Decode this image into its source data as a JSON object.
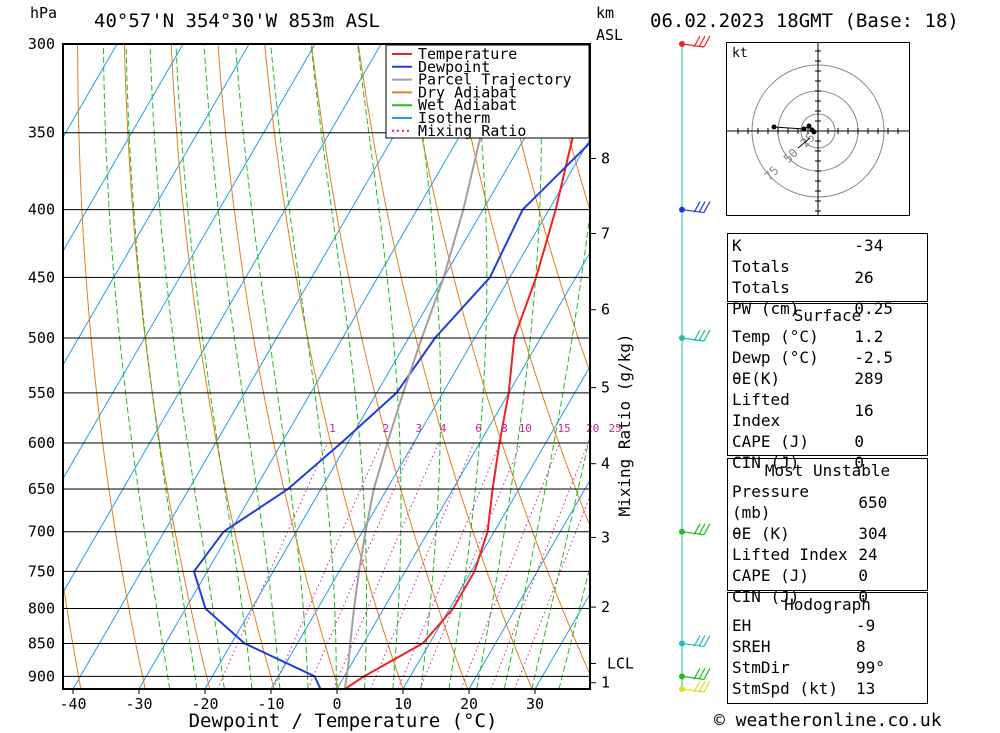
{
  "header": {
    "unit_pressure": "hPa",
    "location": "40°57'N 354°30'W 853m ASL",
    "unit_km": "km",
    "unit_asl": "ASL",
    "datetime": "06.02.2023 18GMT (Base: 18)"
  },
  "footer": {
    "credit": "© weatheronline.co.uk"
  },
  "chart_data": {
    "type": "line",
    "xlabel": "Dewpoint / Temperature (°C)",
    "ylabel": "hPa",
    "mixing_ratio_label": "Mixing Ratio (g/kg)",
    "xlim": [
      -40,
      40
    ],
    "ylim": [
      300,
      920
    ],
    "pressure_ticks": [
      300,
      350,
      400,
      450,
      500,
      550,
      600,
      650,
      700,
      750,
      800,
      850,
      900
    ],
    "temp_ticks": [
      -40,
      -30,
      -20,
      -10,
      0,
      10,
      20,
      30
    ],
    "km_ticks": [
      {
        "label": "8",
        "p": 366
      },
      {
        "label": "7",
        "p": 417
      },
      {
        "label": "6",
        "p": 476
      },
      {
        "label": "5",
        "p": 545
      },
      {
        "label": "4",
        "p": 622
      },
      {
        "label": "3",
        "p": 707
      },
      {
        "label": "2",
        "p": 798
      },
      {
        "label": "LCL",
        "p": 880
      },
      {
        "label": "1",
        "p": 910
      }
    ],
    "mixing_ratio_values": [
      "1",
      "2",
      "3",
      "4",
      "6",
      "8",
      "10",
      "15",
      "20",
      "25"
    ],
    "legend": [
      {
        "name": "Temperature",
        "color": "#ee2222",
        "style": "solid"
      },
      {
        "name": "Dewpoint",
        "color": "#1f3fd8",
        "style": "solid"
      },
      {
        "name": "Parcel Trajectory",
        "color": "#a0a0a0",
        "style": "solid"
      },
      {
        "name": "Dry Adiabat",
        "color": "#e08020",
        "style": "solid"
      },
      {
        "name": "Wet Adiabat",
        "color": "#22bb22",
        "style": "solid"
      },
      {
        "name": "Isotherm",
        "color": "#22a0e0",
        "style": "solid"
      },
      {
        "name": "Mixing Ratio",
        "color": "#cc2299",
        "style": "dotted"
      }
    ],
    "series": [
      {
        "name": "Temperature",
        "points": [
          [
            1.2,
            920
          ],
          [
            3,
            900
          ],
          [
            9,
            850
          ],
          [
            10.5,
            800
          ],
          [
            10.5,
            750
          ],
          [
            9,
            700
          ],
          [
            6,
            650
          ],
          [
            3,
            600
          ],
          [
            0,
            550
          ],
          [
            -4,
            500
          ],
          [
            -6,
            450
          ],
          [
            -9,
            400
          ],
          [
            -13,
            350
          ],
          [
            -16,
            300
          ]
        ]
      },
      {
        "name": "Dewpoint",
        "points": [
          [
            -2.5,
            920
          ],
          [
            -4.5,
            900
          ],
          [
            -18,
            850
          ],
          [
            -27,
            800
          ],
          [
            -32,
            750
          ],
          [
            -31,
            700
          ],
          [
            -25,
            650
          ],
          [
            -21,
            600
          ],
          [
            -17,
            550
          ],
          [
            -16,
            500
          ],
          [
            -13,
            450
          ],
          [
            -14,
            400
          ],
          [
            -9,
            350
          ],
          [
            -4,
            300
          ]
        ]
      },
      {
        "name": "Parcel Trajectory",
        "points": [
          [
            1.2,
            920
          ],
          [
            -0.5,
            880
          ],
          [
            -2,
            850
          ],
          [
            -4.5,
            800
          ],
          [
            -7,
            750
          ],
          [
            -9.5,
            700
          ],
          [
            -12,
            650
          ],
          [
            -14,
            600
          ],
          [
            -16,
            550
          ],
          [
            -18,
            500
          ],
          [
            -20,
            450
          ],
          [
            -23,
            400
          ],
          [
            -27,
            350
          ],
          [
            -31,
            300
          ]
        ]
      }
    ],
    "wind_barbs": [
      {
        "p": 300,
        "color": "#ee2222"
      },
      {
        "p": 400,
        "color": "#1f3fd8"
      },
      {
        "p": 500,
        "color": "#22bbaa"
      },
      {
        "p": 700,
        "color": "#22bb22"
      },
      {
        "p": 850,
        "color": "#22bbcc"
      },
      {
        "p": 900,
        "color": "#22bb22"
      },
      {
        "p": 920,
        "color": "#dddd22"
      }
    ]
  },
  "hodograph": {
    "unit": "kt",
    "ring_labels": [
      "25",
      "50",
      "75"
    ]
  },
  "indices": {
    "general": [
      {
        "label": "K",
        "value": "-34"
      },
      {
        "label": "Totals Totals",
        "value": "26"
      },
      {
        "label": "PW (cm)",
        "value": "0.25"
      }
    ],
    "surface": {
      "title": "Surface",
      "rows": [
        {
          "label": "Temp (°C)",
          "value": "1.2"
        },
        {
          "label": "Dewp (°C)",
          "value": "-2.5"
        },
        {
          "label": "θE(K)",
          "value": "289"
        },
        {
          "label": "Lifted Index",
          "value": "16"
        },
        {
          "label": "CAPE (J)",
          "value": "0"
        },
        {
          "label": "CIN (J)",
          "value": "0"
        }
      ]
    },
    "most_unstable": {
      "title": "Most Unstable",
      "rows": [
        {
          "label": "Pressure (mb)",
          "value": "650"
        },
        {
          "label": "θE (K)",
          "value": "304"
        },
        {
          "label": "Lifted Index",
          "value": "24"
        },
        {
          "label": "CAPE (J)",
          "value": "0"
        },
        {
          "label": "CIN (J)",
          "value": "0"
        }
      ]
    },
    "hodograph": {
      "title": "Hodograph",
      "rows": [
        {
          "label": "EH",
          "value": "-9"
        },
        {
          "label": "SREH",
          "value": "8"
        },
        {
          "label": "StmDir",
          "value": "99°"
        },
        {
          "label": "StmSpd (kt)",
          "value": "13"
        }
      ]
    }
  }
}
